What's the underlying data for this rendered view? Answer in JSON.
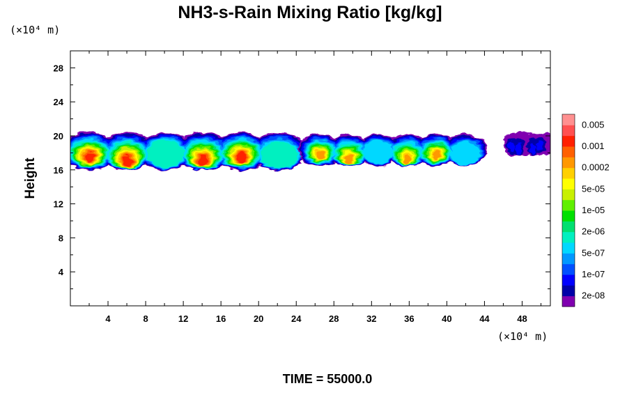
{
  "chart_data": {
    "type": "heatmap",
    "title": "NH3-s-Rain Mixing Ratio [kg/kg]",
    "xlabel": "",
    "ylabel": "Height",
    "x_unit_label": "(×10⁴ m)",
    "y_unit_label": "(×10⁴ m)",
    "xlim": [
      0,
      51
    ],
    "ylim": [
      0,
      30
    ],
    "x_ticks": [
      4,
      8,
      12,
      16,
      20,
      24,
      28,
      32,
      36,
      40,
      44,
      48
    ],
    "y_ticks": [
      4,
      8,
      12,
      16,
      20,
      24,
      28
    ],
    "color_levels": [
      "2e-08",
      "1e-07",
      "5e-07",
      "2e-06",
      "1e-05",
      "5e-05",
      "0.0002",
      "0.001",
      "0.005"
    ],
    "color_scale": [
      "#8000b0",
      "#0000a8",
      "#0000ff",
      "#0050ff",
      "#0098ff",
      "#00d8ff",
      "#00f0c0",
      "#00e070",
      "#00e000",
      "#60f000",
      "#c8f000",
      "#ffff00",
      "#ffd000",
      "#ff9800",
      "#ff6000",
      "#ff2000",
      "#ff5050",
      "#ff9090"
    ],
    "clouds": [
      {
        "x_range": [
          0.0,
          24.2
        ],
        "y_range": [
          16.0,
          20.0
        ],
        "peak_level": 15
      },
      {
        "x_range": [
          25.0,
          43.5
        ],
        "y_range": [
          16.5,
          19.8
        ],
        "peak_level": 13
      },
      {
        "x_range": [
          46.5,
          51.0
        ],
        "y_range": [
          17.8,
          20.0
        ],
        "peak_level": 2
      }
    ],
    "footer": "TIME = 55000.0"
  }
}
